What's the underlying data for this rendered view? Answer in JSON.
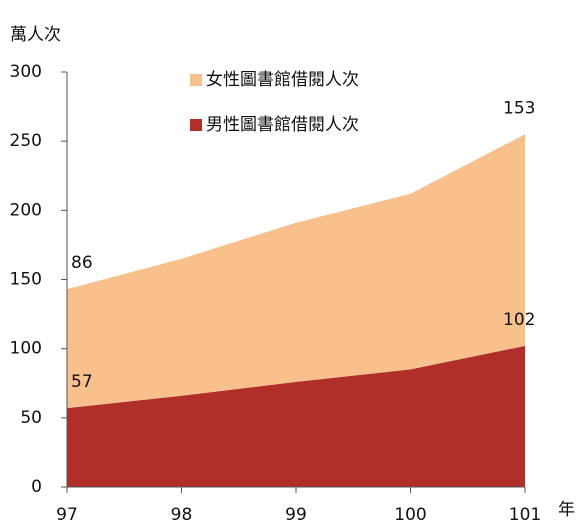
{
  "chart_data": {
    "type": "stacked_area",
    "y_label": "萬人次",
    "x_label": "年",
    "categories": [
      "97",
      "98",
      "99",
      "100",
      "101"
    ],
    "series": [
      {
        "name": "女性圖書館借閱人次",
        "color": "#f8c08c",
        "values": [
          86,
          99,
          115,
          127,
          153
        ]
      },
      {
        "name": "男性圖書館借閱人次",
        "color": "#b12f2b",
        "values": [
          57,
          66,
          76,
          85,
          102
        ]
      }
    ],
    "ylim": [
      0,
      300
    ],
    "yticks": [
      0,
      50,
      100,
      150,
      200,
      250,
      300
    ]
  }
}
